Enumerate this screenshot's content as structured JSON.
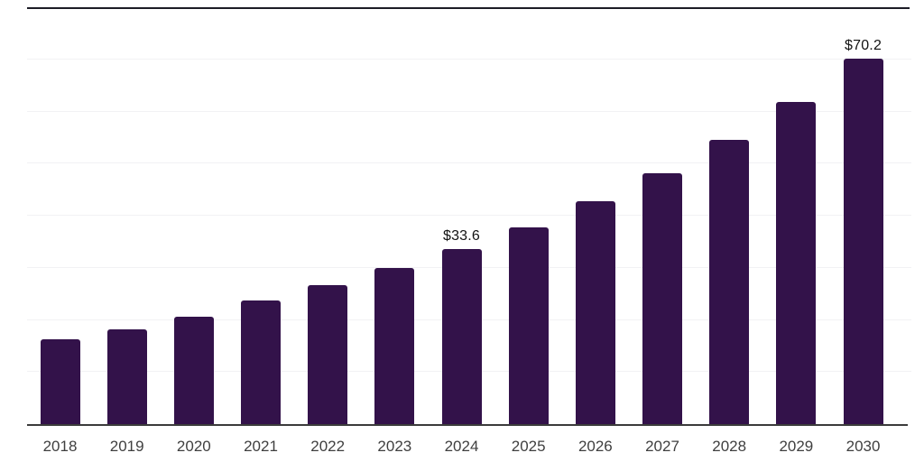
{
  "chart_data": {
    "type": "bar",
    "title": "",
    "xlabel": "",
    "ylabel": "",
    "categories": [
      "2018",
      "2019",
      "2020",
      "2021",
      "2022",
      "2023",
      "2024",
      "2025",
      "2026",
      "2027",
      "2028",
      "2029",
      "2030"
    ],
    "values": [
      16.2,
      18.2,
      20.6,
      23.7,
      26.6,
      30.0,
      33.6,
      37.8,
      42.7,
      48.2,
      54.6,
      61.8,
      70.2
    ],
    "value_labels": {
      "2024": "$33.6",
      "2030": "$70.2"
    },
    "ylim": [
      0,
      80
    ],
    "gridline_step": 10,
    "grid": "horizontal-only",
    "y_tick_labels_visible": false,
    "legend": "none"
  },
  "colors": {
    "background": "#ffffff",
    "bar": "#33124a",
    "gridline": "#f2f2f4",
    "top_border": "#1c1c26",
    "x_axis_line": "#3b3b3b",
    "x_tick_label": "#3f3f3f",
    "value_label": "#121212"
  }
}
